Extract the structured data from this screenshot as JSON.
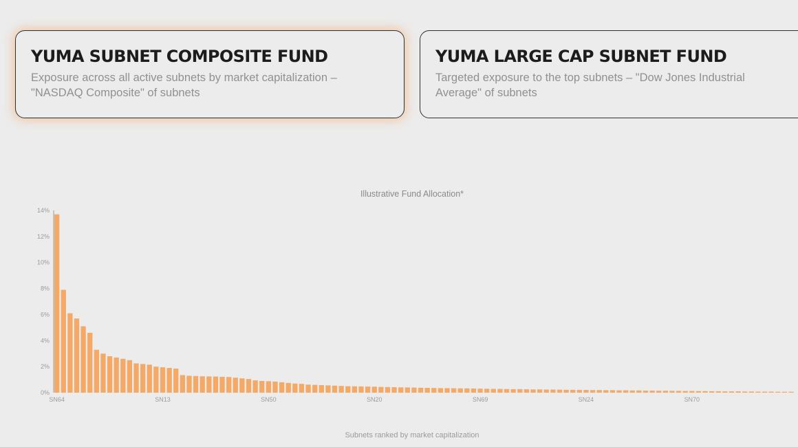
{
  "cards": [
    {
      "title": "YUMA SUBNET COMPOSITE FUND",
      "description": "Exposure across all active subnets by market capitalization – \"NASDAQ Composite\" of subnets",
      "selected": true
    },
    {
      "title": "YUMA LARGE CAP SUBNET FUND",
      "description": "Targeted exposure to the top subnets – \"Dow Jones Industrial Average\" of subnets",
      "selected": false
    }
  ],
  "chart_data": {
    "type": "bar",
    "title": "Illustrative Fund Allocation*",
    "xlabel": "Subnets ranked by market capitalization",
    "ylabel": "",
    "ylim": [
      0,
      14
    ],
    "y_ticks": [
      "0%",
      "2%",
      "4%",
      "6%",
      "8%",
      "10%",
      "12%",
      "14%"
    ],
    "x_tick_labels": [
      {
        "index": 0,
        "label": "SN64"
      },
      {
        "index": 16,
        "label": "SN13"
      },
      {
        "index": 32,
        "label": "SN50"
      },
      {
        "index": 48,
        "label": "SN20"
      },
      {
        "index": 64,
        "label": "SN69"
      },
      {
        "index": 80,
        "label": "SN24"
      },
      {
        "index": 96,
        "label": "SN70"
      }
    ],
    "bar_color": "#f4aa66",
    "values": [
      13.7,
      7.9,
      6.1,
      5.7,
      5.1,
      4.6,
      3.3,
      3.0,
      2.8,
      2.7,
      2.6,
      2.5,
      2.25,
      2.2,
      2.15,
      2.0,
      1.95,
      1.9,
      1.85,
      1.35,
      1.3,
      1.28,
      1.26,
      1.25,
      1.24,
      1.22,
      1.2,
      1.15,
      1.1,
      1.05,
      0.95,
      0.9,
      0.88,
      0.85,
      0.8,
      0.75,
      0.7,
      0.68,
      0.62,
      0.6,
      0.58,
      0.56,
      0.54,
      0.52,
      0.5,
      0.49,
      0.48,
      0.47,
      0.46,
      0.44,
      0.43,
      0.42,
      0.41,
      0.4,
      0.39,
      0.38,
      0.37,
      0.36,
      0.35,
      0.35,
      0.34,
      0.33,
      0.33,
      0.32,
      0.31,
      0.3,
      0.29,
      0.29,
      0.28,
      0.27,
      0.27,
      0.26,
      0.25,
      0.25,
      0.24,
      0.24,
      0.23,
      0.22,
      0.22,
      0.21,
      0.21,
      0.2,
      0.2,
      0.19,
      0.19,
      0.18,
      0.18,
      0.17,
      0.17,
      0.16,
      0.16,
      0.15,
      0.15,
      0.14,
      0.14,
      0.13,
      0.13,
      0.12,
      0.12,
      0.11,
      0.11,
      0.1,
      0.1,
      0.1,
      0.09,
      0.09,
      0.08,
      0.08,
      0.08,
      0.07,
      0.07,
      0.07
    ]
  }
}
